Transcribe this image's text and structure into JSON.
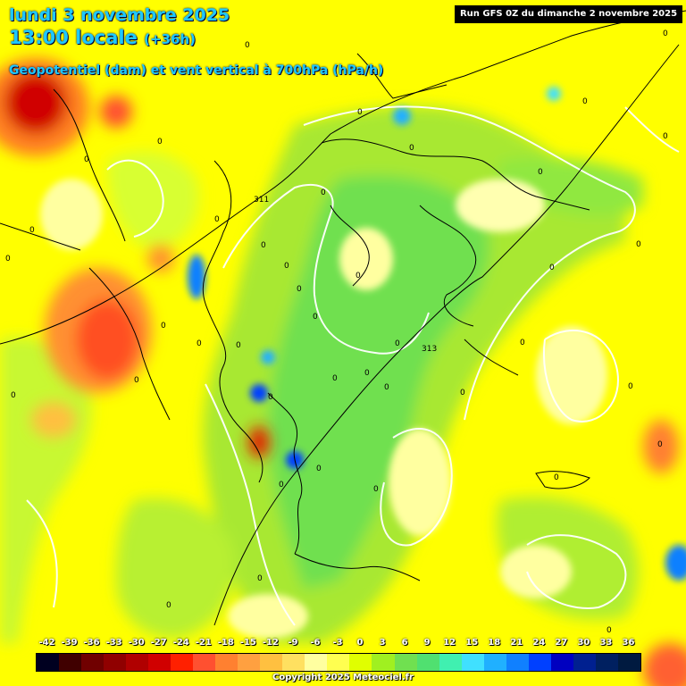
{
  "header": {
    "date": "lundi 3 novembre 2025",
    "time_local": "13:00 locale",
    "lead": "(+36h)",
    "parameter": "Geopotentiel (dam) et vent vertical à 700hPa (hPa/h)",
    "run": "Run GFS 0Z du dimanche 2 novembre 2025"
  },
  "map": {
    "geopotential_labels": [
      "313",
      "311"
    ],
    "vertical_wind_zero_label": "0"
  },
  "legend": {
    "values": [
      "-42",
      "-39",
      "-36",
      "-33",
      "-30",
      "-27",
      "-24",
      "-21",
      "-18",
      "-15",
      "-12",
      "-9",
      "-6",
      "-3",
      "0",
      "3",
      "6",
      "9",
      "12",
      "15",
      "18",
      "21",
      "24",
      "27",
      "30",
      "33",
      "36"
    ],
    "colors": [
      "#000020",
      "#400000",
      "#700000",
      "#900000",
      "#b00000",
      "#d00000",
      "#ff2000",
      "#ff5030",
      "#ff8030",
      "#ffa040",
      "#ffc040",
      "#ffe060",
      "#ffffa0",
      "#ffff50",
      "#e0ff00",
      "#a0f020",
      "#70e050",
      "#50e070",
      "#40f0b0",
      "#40e0ff",
      "#20b0ff",
      "#1080ff",
      "#0040ff",
      "#0000c0",
      "#002090",
      "#002060",
      "#001a40"
    ]
  },
  "footer": {
    "copyright": "Copyright 2025 Meteociel.fr"
  }
}
